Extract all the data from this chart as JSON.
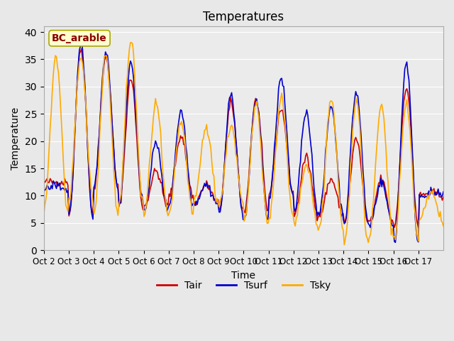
{
  "title": "Temperatures",
  "xlabel": "Time",
  "ylabel": "Temperature",
  "legend_label": "BC_arable",
  "series_labels": [
    "Tair",
    "Tsurf",
    "Tsky"
  ],
  "series_colors": [
    "#cc0000",
    "#0000cc",
    "#ffaa00"
  ],
  "ylim": [
    0,
    41
  ],
  "yticks": [
    0,
    5,
    10,
    15,
    20,
    25,
    30,
    35,
    40
  ],
  "xtick_labels": [
    "Oct 2",
    "Oct 3",
    "Oct 4",
    "Oct 5",
    "Oct 6",
    "Oct 7",
    "Oct 8",
    "Oct 9",
    "Oct 10",
    "Oct 11",
    "Oct 12",
    "Oct 13",
    "Oct 14",
    "Oct 15",
    "Oct 16",
    "Oct 17"
  ],
  "background_color": "#e8e8e8",
  "plot_bg_color": "#ebebeb",
  "n_days": 16,
  "pts_per_day": 24,
  "day_min_Tair": [
    12.5,
    6.5,
    11.5,
    8.0,
    8.0,
    10.0,
    8.5,
    7.5,
    7.0,
    10.5,
    6.5,
    6.5,
    5.0,
    5.0,
    4.5,
    10.0
  ],
  "day_max_Tair": [
    12.5,
    37.0,
    35.5,
    31.5,
    14.5,
    21.0,
    12.0,
    27.0,
    27.5,
    26.0,
    17.0,
    13.0,
    20.5,
    13.0,
    30.0,
    10.5
  ],
  "day_min_Tsurf": [
    11.0,
    6.5,
    11.5,
    8.5,
    7.5,
    8.5,
    8.5,
    6.5,
    5.5,
    9.5,
    7.0,
    6.5,
    5.0,
    4.5,
    1.5,
    10.0
  ],
  "day_max_Tsurf": [
    12.0,
    37.5,
    36.5,
    34.5,
    19.5,
    25.5,
    12.0,
    28.5,
    27.5,
    31.5,
    25.5,
    26.5,
    29.0,
    12.5,
    34.5,
    10.5
  ],
  "day_min_Tsky": [
    7.0,
    9.5,
    6.5,
    8.5,
    6.5,
    6.5,
    9.0,
    8.5,
    5.0,
    6.0,
    4.5,
    4.0,
    1.0,
    2.5,
    2.0,
    5.5
  ],
  "day_max_Tsky": [
    35.5,
    35.5,
    36.0,
    38.5,
    27.0,
    23.5,
    22.5,
    23.0,
    27.0,
    28.0,
    15.5,
    27.5,
    27.5,
    26.5,
    26.5,
    10.5
  ]
}
